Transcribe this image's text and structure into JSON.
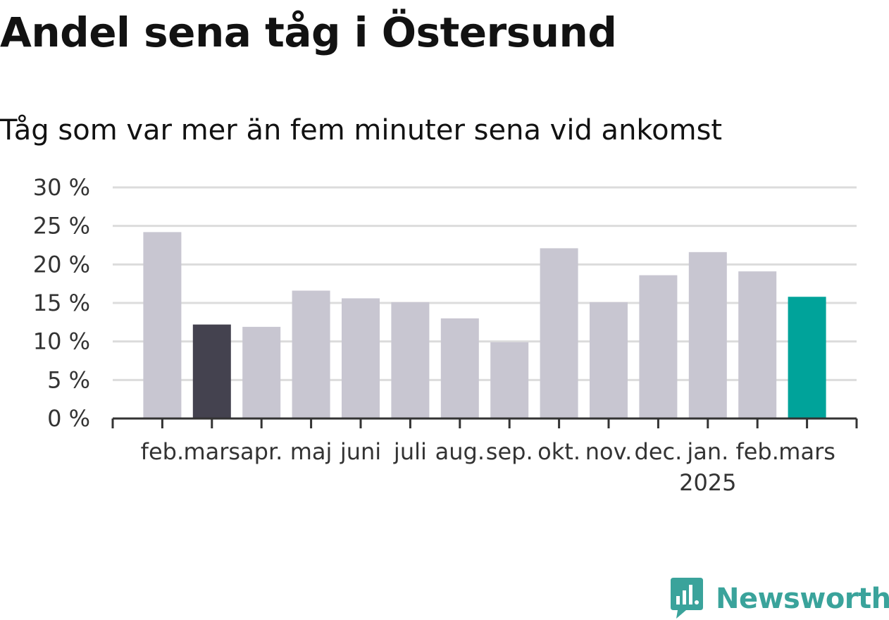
{
  "title": "Andel sena tåg i Östersund",
  "subtitle": "Tåg som var mer än fem minuter sena vid ankomst",
  "chart_data": {
    "type": "bar",
    "categories": [
      "feb.",
      "mars",
      "apr.",
      "maj",
      "juni",
      "juli",
      "aug.",
      "sep.",
      "okt.",
      "nov.",
      "dec.",
      "jan.",
      "feb.",
      "mars"
    ],
    "category_sublabels": [
      "",
      "",
      "",
      "",
      "",
      "",
      "",
      "",
      "",
      "",
      "",
      "2025",
      "",
      ""
    ],
    "values": [
      24.2,
      12.2,
      11.9,
      16.6,
      15.6,
      15.1,
      13.0,
      9.9,
      22.1,
      15.1,
      18.6,
      21.6,
      19.1,
      15.8
    ],
    "bar_colors": [
      "#c8c6d1",
      "#44424f",
      "#c8c6d1",
      "#c8c6d1",
      "#c8c6d1",
      "#c8c6d1",
      "#c8c6d1",
      "#c8c6d1",
      "#c8c6d1",
      "#c8c6d1",
      "#c8c6d1",
      "#c8c6d1",
      "#c8c6d1",
      "#00a39a"
    ],
    "ylim": [
      0,
      30
    ],
    "yticks": [
      0,
      5,
      10,
      15,
      20,
      25,
      30
    ],
    "ytick_labels": [
      "0 %",
      "5 %",
      "10 %",
      "15 %",
      "20 %",
      "25 %",
      "30 %"
    ],
    "grid": true,
    "xlabel": "",
    "ylabel": ""
  },
  "colors": {
    "bar_default": "#c8c6d1",
    "bar_highlight_dark": "#44424f",
    "bar_highlight_accent": "#00a39a",
    "gridline": "#dcdcdc",
    "axis": "#333333",
    "brand": "#3aa39b"
  },
  "logo": {
    "text": "Newsworthy",
    "icon": "newsworthy-chart-bubble-icon"
  }
}
